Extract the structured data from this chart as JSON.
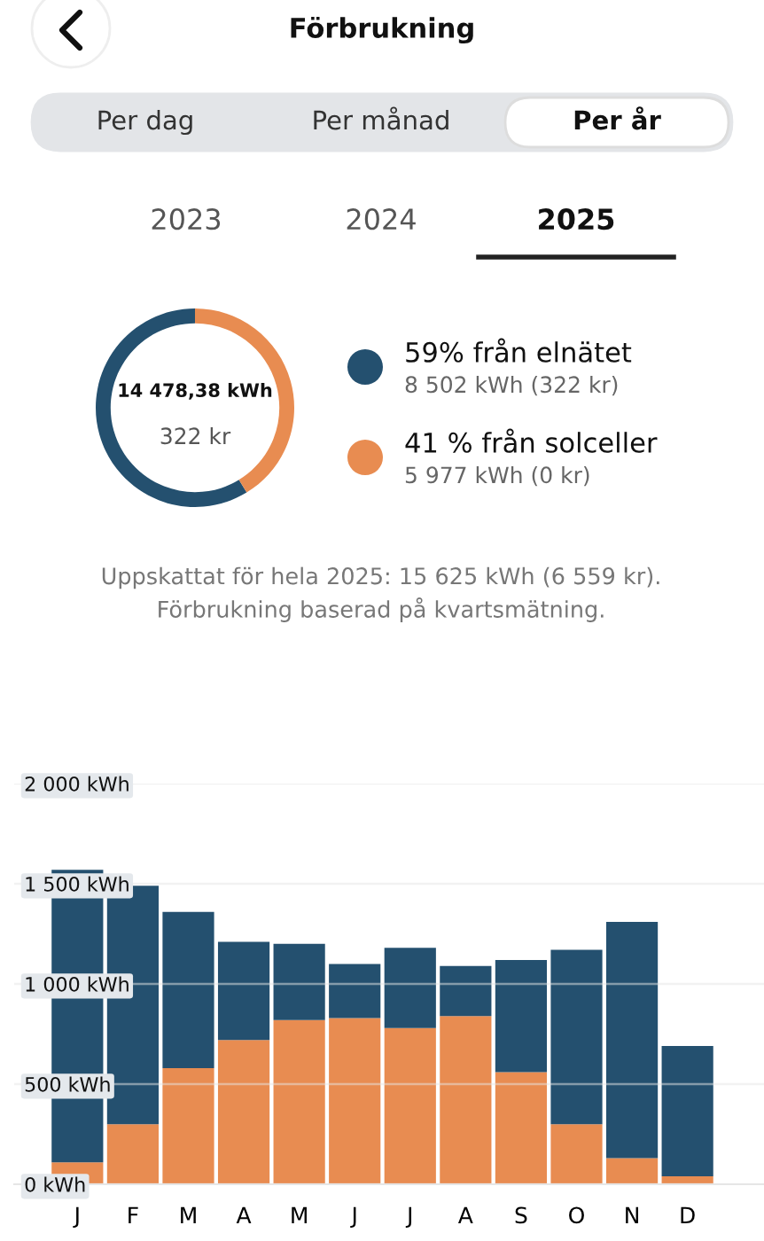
{
  "chart_data": [
    {
      "type": "donut",
      "title": "Förbrukning",
      "categories": [
        "59% från elnätet",
        "41 % från solceller"
      ],
      "values": [
        8502,
        5977
      ],
      "colors": [
        "#24506f",
        "#e88c51"
      ],
      "value_labels": [
        "8 502 kWh (322 kr)",
        "5 977 kWh (0 kr)"
      ],
      "legend": "right",
      "annotations": [
        "Per dag",
        "Per månad",
        "Per år",
        "2023",
        "2024",
        "2025",
        "14 478,38 kWh",
        "322 kr",
        "Uppskattat för hela 2025: 15 625 kWh (6 559 kr).",
        "Förbrukning baserad på kvartsmätning."
      ]
    },
    {
      "type": "bar",
      "stacked": true,
      "categories": [
        "J",
        "F",
        "M",
        "A",
        "M",
        "J",
        "J",
        "A",
        "S",
        "O",
        "N",
        "D"
      ],
      "series": [
        {
          "color": "#e88c51",
          "values": [
            110,
            300,
            580,
            720,
            820,
            830,
            780,
            840,
            560,
            300,
            130,
            40
          ]
        },
        {
          "color": "#24506f",
          "values": [
            1460,
            1190,
            780,
            490,
            380,
            270,
            400,
            250,
            560,
            870,
            1180,
            650
          ]
        }
      ],
      "ylim": [
        0,
        2000
      ],
      "yticks": [
        {
          "value": 0,
          "label": "0 kWh"
        },
        {
          "value": 500,
          "label": "500 kWh"
        },
        {
          "value": 1000,
          "label": "1 000 kWh"
        },
        {
          "value": 1500,
          "label": "1 500 kWh"
        },
        {
          "value": 2000,
          "label": "2 000 kWh"
        }
      ],
      "grid": "y"
    }
  ]
}
